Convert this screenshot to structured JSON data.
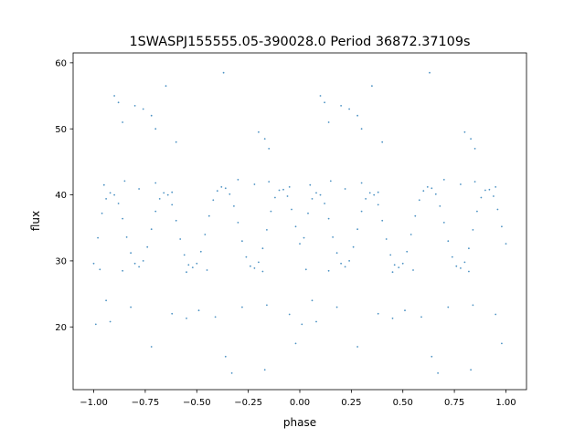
{
  "chart_data": {
    "type": "scatter",
    "title": "1SWASPJ155555.05-390028.0 Period 36872.37109s",
    "xlabel": "phase",
    "ylabel": "flux",
    "xlim": [
      -1.1,
      1.1
    ],
    "ylim": [
      10.5,
      61.5
    ],
    "xticks": [
      -1.0,
      -0.75,
      -0.5,
      -0.25,
      0.0,
      0.25,
      0.5,
      0.75,
      1.0
    ],
    "xtick_labels": [
      "−1.00",
      "−0.75",
      "−0.50",
      "−0.25",
      "0.00",
      "0.25",
      "0.50",
      "0.75",
      "1.00"
    ],
    "yticks": [
      20,
      30,
      40,
      50,
      60
    ],
    "ytick_labels": [
      "20",
      "30",
      "40",
      "50",
      "60"
    ],
    "grid": false,
    "legend": "none",
    "marker_color": "#1f77b4",
    "period_folded": true,
    "series": [
      {
        "points": [
          [
            -1.0,
            29.6
          ],
          [
            -0.98,
            33.5
          ],
          [
            -0.96,
            37.2
          ],
          [
            -0.94,
            39.4
          ],
          [
            -0.92,
            40.3
          ],
          [
            -0.9,
            40.0
          ],
          [
            -0.88,
            38.7
          ],
          [
            -0.86,
            36.4
          ],
          [
            -0.84,
            33.6
          ],
          [
            -0.82,
            31.2
          ],
          [
            -0.8,
            29.6
          ],
          [
            -0.78,
            29.1
          ],
          [
            -0.76,
            30.0
          ],
          [
            -0.74,
            32.1
          ],
          [
            -0.72,
            34.8
          ],
          [
            -0.7,
            37.5
          ],
          [
            -0.68,
            39.4
          ],
          [
            -0.66,
            40.3
          ],
          [
            -0.64,
            40.0
          ],
          [
            -0.62,
            38.5
          ],
          [
            -0.6,
            36.1
          ],
          [
            -0.58,
            33.3
          ],
          [
            -0.56,
            30.9
          ],
          [
            -0.54,
            29.4
          ],
          [
            -0.52,
            29.0
          ],
          [
            -0.5,
            29.6
          ],
          [
            -0.48,
            31.4
          ],
          [
            -0.46,
            34.0
          ],
          [
            -0.44,
            36.8
          ],
          [
            -0.42,
            39.2
          ],
          [
            -0.4,
            40.6
          ],
          [
            -0.38,
            41.2
          ],
          [
            -0.36,
            41.0
          ],
          [
            -0.34,
            40.1
          ],
          [
            -0.32,
            38.3
          ],
          [
            -0.3,
            35.8
          ],
          [
            -0.28,
            33.0
          ],
          [
            -0.26,
            30.6
          ],
          [
            -0.24,
            29.2
          ],
          [
            -0.22,
            28.9
          ],
          [
            -0.2,
            29.8
          ],
          [
            -0.18,
            31.9
          ],
          [
            -0.16,
            34.7
          ],
          [
            -0.14,
            37.5
          ],
          [
            -0.12,
            39.6
          ],
          [
            -0.1,
            40.7
          ],
          [
            -0.08,
            40.8
          ],
          [
            -0.06,
            39.8
          ],
          [
            -0.04,
            37.8
          ],
          [
            -0.02,
            35.2
          ],
          [
            0.0,
            32.6
          ],
          [
            0.02,
            33.5
          ],
          [
            0.04,
            37.2
          ],
          [
            0.06,
            39.4
          ],
          [
            0.08,
            40.3
          ],
          [
            0.1,
            40.0
          ],
          [
            0.12,
            38.7
          ],
          [
            0.14,
            36.4
          ],
          [
            0.16,
            33.6
          ],
          [
            0.18,
            31.2
          ],
          [
            0.2,
            29.6
          ],
          [
            0.22,
            29.1
          ],
          [
            0.24,
            30.0
          ],
          [
            0.26,
            32.1
          ],
          [
            0.28,
            34.8
          ],
          [
            0.3,
            37.5
          ],
          [
            0.32,
            39.4
          ],
          [
            0.34,
            40.3
          ],
          [
            0.36,
            40.0
          ],
          [
            0.38,
            38.5
          ],
          [
            0.4,
            36.1
          ],
          [
            0.42,
            33.3
          ],
          [
            0.44,
            30.9
          ],
          [
            0.46,
            29.4
          ],
          [
            0.48,
            29.0
          ],
          [
            0.5,
            29.6
          ],
          [
            0.52,
            31.4
          ],
          [
            0.54,
            34.0
          ],
          [
            0.56,
            36.8
          ],
          [
            0.58,
            39.2
          ],
          [
            0.6,
            40.6
          ],
          [
            0.62,
            41.2
          ],
          [
            0.64,
            41.0
          ],
          [
            0.66,
            40.1
          ],
          [
            0.68,
            38.3
          ],
          [
            0.7,
            35.8
          ],
          [
            0.72,
            33.0
          ],
          [
            0.74,
            30.6
          ],
          [
            0.76,
            29.2
          ],
          [
            0.78,
            28.9
          ],
          [
            0.8,
            29.8
          ],
          [
            0.82,
            31.9
          ],
          [
            0.84,
            34.7
          ],
          [
            0.86,
            37.5
          ],
          [
            0.88,
            39.6
          ],
          [
            0.9,
            40.7
          ],
          [
            0.92,
            40.8
          ],
          [
            0.94,
            39.8
          ],
          [
            0.96,
            37.8
          ],
          [
            0.98,
            35.2
          ],
          [
            1.0,
            32.6
          ],
          [
            -0.95,
            41.5
          ],
          [
            -0.85,
            42.1
          ],
          [
            -0.78,
            40.9
          ],
          [
            -0.7,
            41.8
          ],
          [
            -0.62,
            40.4
          ],
          [
            -0.3,
            42.3
          ],
          [
            -0.22,
            41.6
          ],
          [
            -0.15,
            42.0
          ],
          [
            -0.05,
            41.2
          ],
          [
            0.05,
            41.5
          ],
          [
            0.15,
            42.1
          ],
          [
            0.22,
            40.9
          ],
          [
            0.3,
            41.8
          ],
          [
            0.38,
            40.4
          ],
          [
            0.7,
            42.3
          ],
          [
            0.78,
            41.6
          ],
          [
            0.85,
            42.0
          ],
          [
            0.95,
            41.2
          ],
          [
            -0.97,
            28.7
          ],
          [
            -0.86,
            28.5
          ],
          [
            -0.55,
            28.3
          ],
          [
            -0.45,
            28.6
          ],
          [
            -0.18,
            28.4
          ],
          [
            0.03,
            28.7
          ],
          [
            0.14,
            28.5
          ],
          [
            0.45,
            28.3
          ],
          [
            0.55,
            28.6
          ],
          [
            0.82,
            28.4
          ],
          [
            -0.9,
            55.0
          ],
          [
            -0.88,
            54.0
          ],
          [
            -0.86,
            51.0
          ],
          [
            -0.8,
            53.5
          ],
          [
            -0.76,
            53.0
          ],
          [
            -0.72,
            52.0
          ],
          [
            -0.7,
            50.0
          ],
          [
            -0.2,
            49.5
          ],
          [
            -0.17,
            48.5
          ],
          [
            -0.15,
            47.0
          ],
          [
            0.1,
            55.0
          ],
          [
            0.12,
            54.0
          ],
          [
            0.14,
            51.0
          ],
          [
            0.2,
            53.5
          ],
          [
            0.24,
            53.0
          ],
          [
            0.28,
            52.0
          ],
          [
            0.3,
            50.0
          ],
          [
            0.8,
            49.5
          ],
          [
            0.83,
            48.5
          ],
          [
            0.85,
            47.0
          ],
          [
            -0.65,
            56.5
          ],
          [
            0.35,
            56.5
          ],
          [
            -0.37,
            58.5
          ],
          [
            0.63,
            58.5
          ],
          [
            -0.6,
            48.0
          ],
          [
            0.4,
            48.0
          ],
          [
            -0.99,
            20.4
          ],
          [
            -0.94,
            24.0
          ],
          [
            -0.92,
            20.8
          ],
          [
            -0.82,
            23.0
          ],
          [
            -0.72,
            17.0
          ],
          [
            -0.62,
            22.0
          ],
          [
            -0.55,
            21.3
          ],
          [
            -0.49,
            22.5
          ],
          [
            -0.41,
            21.5
          ],
          [
            -0.36,
            15.5
          ],
          [
            -0.33,
            13.0
          ],
          [
            -0.28,
            23.0
          ],
          [
            -0.16,
            23.3
          ],
          [
            -0.05,
            21.9
          ],
          [
            0.01,
            20.4
          ],
          [
            0.06,
            24.0
          ],
          [
            0.08,
            20.8
          ],
          [
            0.18,
            23.0
          ],
          [
            0.28,
            17.0
          ],
          [
            0.38,
            22.0
          ],
          [
            0.45,
            21.3
          ],
          [
            0.51,
            22.5
          ],
          [
            0.59,
            21.5
          ],
          [
            0.64,
            15.5
          ],
          [
            0.67,
            13.0
          ],
          [
            0.72,
            23.0
          ],
          [
            0.84,
            23.3
          ],
          [
            0.95,
            21.9
          ],
          [
            -0.17,
            13.5
          ],
          [
            0.83,
            13.5
          ],
          [
            -0.02,
            17.5
          ],
          [
            0.98,
            17.5
          ]
        ]
      }
    ]
  }
}
